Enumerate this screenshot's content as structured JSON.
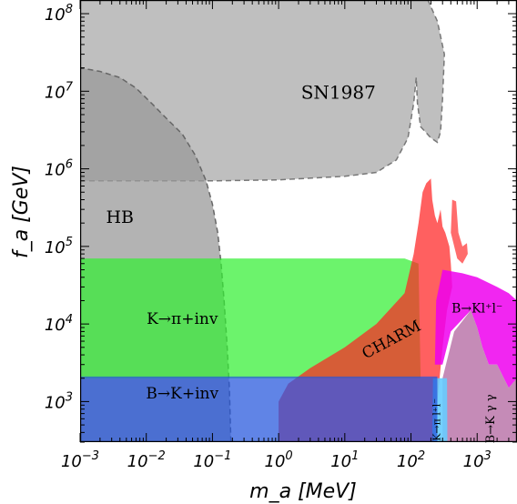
{
  "chart_data": {
    "type": "area",
    "title": "",
    "xlabel": "m_a [MeV]",
    "ylabel": "f_a [GeV]",
    "x_scale": "log",
    "y_scale": "log",
    "xlim": [
      0.001,
      4000
    ],
    "ylim": [
      300,
      150000000
    ],
    "x_ticks": [
      {
        "value": 0.001,
        "base": "10",
        "exp": "−3"
      },
      {
        "value": 0.01,
        "base": "10",
        "exp": "−2"
      },
      {
        "value": 0.1,
        "base": "10",
        "exp": "−1"
      },
      {
        "value": 1,
        "base": "10",
        "exp": "0"
      },
      {
        "value": 10,
        "base": "10",
        "exp": "1"
      },
      {
        "value": 100,
        "base": "10",
        "exp": "2"
      },
      {
        "value": 1000,
        "base": "10",
        "exp": "3"
      }
    ],
    "y_ticks": [
      {
        "value": 1000,
        "base": "10",
        "exp": "3"
      },
      {
        "value": 10000,
        "base": "10",
        "exp": "4"
      },
      {
        "value": 100000,
        "base": "10",
        "exp": "5"
      },
      {
        "value": 1000000,
        "base": "10",
        "exp": "6"
      },
      {
        "value": 10000000,
        "base": "10",
        "exp": "7"
      },
      {
        "value": 100000000,
        "base": "10",
        "exp": "8"
      }
    ],
    "regions": [
      {
        "name": "SN1987",
        "label": "SN1987",
        "color": "#b8b8b8",
        "opacity": 0.9,
        "stroke": "#777777",
        "dashed": true,
        "points": [
          [
            0.001,
            700000
          ],
          [
            0.1,
            700000
          ],
          [
            1,
            720000
          ],
          [
            10,
            800000
          ],
          [
            30,
            900000
          ],
          [
            60,
            1300000
          ],
          [
            90,
            2500000
          ],
          [
            110,
            7000000
          ],
          [
            120,
            15000000
          ],
          [
            125,
            7000000
          ],
          [
            140,
            3500000
          ],
          [
            200,
            2500000
          ],
          [
            250,
            2200000
          ],
          [
            280,
            3000000
          ],
          [
            300,
            8000000
          ],
          [
            320,
            30000000
          ],
          [
            250,
            80000000
          ],
          [
            180,
            150000000
          ],
          [
            0.001,
            150000000
          ]
        ]
      },
      {
        "name": "HB",
        "label": "HB",
        "color": "#9a9a9a",
        "opacity": 0.75,
        "stroke": "#666666",
        "dashed": true,
        "points": [
          [
            0.001,
            300
          ],
          [
            0.001,
            20000000
          ],
          [
            0.002,
            18000000
          ],
          [
            0.004,
            15000000
          ],
          [
            0.007,
            11000000
          ],
          [
            0.012,
            7000000
          ],
          [
            0.02,
            4500000
          ],
          [
            0.035,
            2800000
          ],
          [
            0.055,
            1500000
          ],
          [
            0.08,
            700000
          ],
          [
            0.1,
            350000
          ],
          [
            0.12,
            150000
          ],
          [
            0.135,
            60000
          ],
          [
            0.15,
            20000
          ],
          [
            0.165,
            6000
          ],
          [
            0.18,
            1500
          ],
          [
            0.19,
            300
          ]
        ]
      },
      {
        "name": "K_pi_inv",
        "label": "K→π+inv",
        "color": "#33ee33",
        "opacity": 0.72,
        "points": [
          [
            0.001,
            2000
          ],
          [
            0.001,
            70000
          ],
          [
            80,
            70000
          ],
          [
            130,
            60000
          ],
          [
            140,
            2000
          ]
        ]
      },
      {
        "name": "CHARM",
        "label": "CHARM",
        "color": "#ff2222",
        "opacity": 0.72,
        "points": [
          [
            1,
            300
          ],
          [
            1,
            1000
          ],
          [
            1.4,
            1700
          ],
          [
            3,
            2700
          ],
          [
            10,
            5000
          ],
          [
            30,
            10000
          ],
          [
            80,
            25000
          ],
          [
            110,
            80000
          ],
          [
            130,
            200000
          ],
          [
            150,
            500000
          ],
          [
            170,
            650000
          ],
          [
            200,
            750000
          ],
          [
            210,
            400000
          ],
          [
            230,
            250000
          ],
          [
            250,
            200000
          ],
          [
            280,
            300000
          ],
          [
            300,
            180000
          ],
          [
            330,
            150000
          ],
          [
            380,
            100000
          ],
          [
            400,
            60000
          ],
          [
            420,
            30000
          ],
          [
            350,
            15000
          ],
          [
            300,
            5000
          ],
          [
            250,
            1000
          ],
          [
            220,
            300
          ]
        ]
      },
      {
        "name": "CHARM_fringe",
        "label": "",
        "color": "#ff3333",
        "opacity": 0.72,
        "points": [
          [
            400,
            150000
          ],
          [
            420,
            400000
          ],
          [
            480,
            380000
          ],
          [
            520,
            150000
          ],
          [
            600,
            100000
          ],
          [
            700,
            110000
          ],
          [
            720,
            80000
          ],
          [
            600,
            60000
          ],
          [
            500,
            70000
          ]
        ]
      },
      {
        "name": "B_K_ll",
        "label": "B→Kl⁺l⁻",
        "color": "#ee00ee",
        "opacity": 0.85,
        "points": [
          [
            230,
            3000
          ],
          [
            240,
            20000
          ],
          [
            300,
            50000
          ],
          [
            600,
            45000
          ],
          [
            1000,
            40000
          ],
          [
            2000,
            30000
          ],
          [
            3000,
            25000
          ],
          [
            4000,
            20000
          ],
          [
            4000,
            2000
          ],
          [
            3000,
            1500
          ],
          [
            2000,
            3000
          ],
          [
            1500,
            3000
          ],
          [
            1200,
            5000
          ],
          [
            1000,
            9000
          ],
          [
            800,
            15000
          ],
          [
            400,
            8000
          ],
          [
            300,
            3000
          ]
        ]
      },
      {
        "name": "B_K_gamma_gamma",
        "label": "B→K γ γ",
        "color": "#bb77aa",
        "opacity": 0.85,
        "points": [
          [
            300,
            300
          ],
          [
            300,
            2000
          ],
          [
            450,
            8000
          ],
          [
            800,
            15000
          ],
          [
            1000,
            9000
          ],
          [
            1200,
            5000
          ],
          [
            1500,
            3000
          ],
          [
            2000,
            3000
          ],
          [
            3000,
            1500
          ],
          [
            4000,
            2000
          ],
          [
            4000,
            300
          ]
        ]
      },
      {
        "name": "K_pi_ll",
        "label": "K→π l⁺l⁻",
        "color": "#66ccff",
        "opacity": 0.9,
        "points": [
          [
            210,
            300
          ],
          [
            215,
            2000
          ],
          [
            350,
            2000
          ],
          [
            355,
            300
          ]
        ]
      },
      {
        "name": "B_K_inv",
        "label": "B→K+inv",
        "color": "#2255dd",
        "opacity": 0.72,
        "points": [
          [
            0.001,
            300
          ],
          [
            0.001,
            2100
          ],
          [
            250,
            2100
          ],
          [
            250,
            300
          ]
        ]
      }
    ]
  }
}
